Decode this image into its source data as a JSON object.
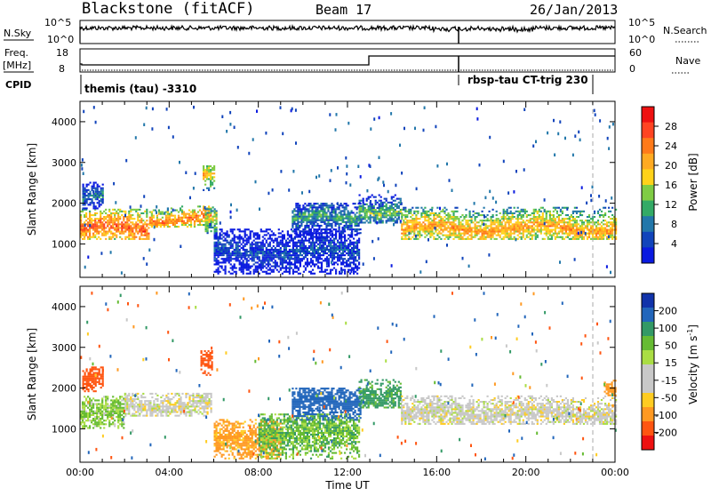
{
  "header": {
    "station": "Blackstone (fitACF)",
    "beam": "Beam 17",
    "date": "26/Jan/2013"
  },
  "top_panels": {
    "nsky_label": "N.Sky",
    "nsky_ticks": [
      "10^5",
      "10^0"
    ],
    "nsearch_label": "N.Search",
    "nsearch_ticks": [
      "10^5",
      "10^0"
    ],
    "freq_label": "Freq.",
    "freq_unit": "[MHz]",
    "freq_ticks": [
      "18",
      "8"
    ],
    "nave_label": "Nave",
    "nave_ticks": [
      "60",
      "0"
    ],
    "cpid_label": "CPID",
    "cpid_left": "themis (tau) -3310",
    "cpid_right": "rbsp-tau CT-trig 230"
  },
  "chart_data": [
    {
      "type": "heatmap",
      "name": "power",
      "ylabel": "Slant Range [km]",
      "ylim": [
        180,
        4500
      ],
      "yticks": [
        1000,
        2000,
        3000,
        4000
      ],
      "xlim": [
        0,
        24
      ],
      "xticks": [
        "00:00",
        "04:00",
        "08:00",
        "12:00",
        "16:00",
        "20:00",
        "00:00"
      ],
      "colorbar_label": "Power [dB]",
      "colorbar_ticks": [
        "28",
        "24",
        "20",
        "16",
        "12",
        "8",
        "4"
      ],
      "colorbar_colors": [
        "#ee1111",
        "#ff4422",
        "#ff7a1a",
        "#ffaa22",
        "#ffd21a",
        "#7fcc44",
        "#33aa66",
        "#2277aa",
        "#1144bb",
        "#0a1ae0"
      ],
      "bands": [
        {
          "t0": 0.0,
          "t1": 3.1,
          "r0": 1100,
          "r1": 1850,
          "peak": 1350,
          "val": 26
        },
        {
          "t0": 3.1,
          "t1": 5.9,
          "r0": 1400,
          "r1": 1900,
          "peak": 1600,
          "val": 24
        },
        {
          "t0": 0.1,
          "t1": 1.0,
          "r0": 1850,
          "r1": 2500,
          "peak": 2100,
          "val": 10
        },
        {
          "t0": 5.5,
          "t1": 6.0,
          "r0": 2300,
          "r1": 2900,
          "peak": 2600,
          "val": 20
        },
        {
          "t0": 5.6,
          "t1": 6.1,
          "r0": 1200,
          "r1": 1900,
          "peak": 1500,
          "val": 18
        },
        {
          "t0": 6.0,
          "t1": 12.5,
          "r0": 250,
          "r1": 1350,
          "peak": 800,
          "val": 7
        },
        {
          "t0": 9.5,
          "t1": 12.6,
          "r0": 1200,
          "r1": 2000,
          "peak": 1600,
          "val": 12
        },
        {
          "t0": 12.5,
          "t1": 14.4,
          "r0": 1500,
          "r1": 2200,
          "peak": 1800,
          "val": 14
        },
        {
          "t0": 14.4,
          "t1": 24.0,
          "r0": 1100,
          "r1": 1900,
          "peak": 1350,
          "val": 22
        }
      ]
    },
    {
      "type": "heatmap",
      "name": "velocity",
      "ylabel": "Slant Range [km]",
      "ylim": [
        180,
        4500
      ],
      "yticks": [
        1000,
        2000,
        3000,
        4000
      ],
      "xlim": [
        0,
        24
      ],
      "xticks": [
        "00:00",
        "04:00",
        "08:00",
        "12:00",
        "16:00",
        "20:00",
        "00:00"
      ],
      "xlabel": "Time UT",
      "colorbar_label": "Velocity [m s",
      "colorbar_exp": "-1",
      "colorbar_ticks": [
        "200",
        "100",
        "50",
        "15",
        "-15",
        "-50",
        "-100",
        "-200"
      ],
      "colorbar_colors": [
        "#1133aa",
        "#2266bb",
        "#339966",
        "#66bb33",
        "#aadd44",
        "#c8c8c8",
        "#c8c8c8",
        "#ffcc22",
        "#ff9922",
        "#ff5511",
        "#ee1111"
      ],
      "bands": [
        {
          "t0": 0.0,
          "t1": 2.0,
          "r0": 1000,
          "r1": 1800,
          "peak": 1300,
          "val": 30
        },
        {
          "t0": 2.0,
          "t1": 5.9,
          "r0": 1300,
          "r1": 1850,
          "peak": 1550,
          "val": 0
        },
        {
          "t0": 0.1,
          "t1": 1.0,
          "r0": 1900,
          "r1": 2500,
          "peak": 2200,
          "val": -180
        },
        {
          "t0": 5.4,
          "t1": 5.9,
          "r0": 2300,
          "r1": 2900,
          "peak": 2600,
          "val": -150
        },
        {
          "t0": 6.0,
          "t1": 9.0,
          "r0": 250,
          "r1": 1200,
          "peak": 700,
          "val": -60
        },
        {
          "t0": 8.0,
          "t1": 12.5,
          "r0": 250,
          "r1": 1350,
          "peak": 900,
          "val": 40
        },
        {
          "t0": 9.5,
          "t1": 12.6,
          "r0": 1200,
          "r1": 2000,
          "peak": 1600,
          "val": 120
        },
        {
          "t0": 12.5,
          "t1": 14.4,
          "r0": 1500,
          "r1": 2200,
          "peak": 1800,
          "val": 60
        },
        {
          "t0": 14.4,
          "t1": 24.0,
          "r0": 1100,
          "r1": 1800,
          "peak": 1350,
          "val": 0
        },
        {
          "t0": 23.5,
          "t1": 24.0,
          "r0": 1800,
          "r1": 2200,
          "peak": 2000,
          "val": -80
        }
      ]
    }
  ]
}
